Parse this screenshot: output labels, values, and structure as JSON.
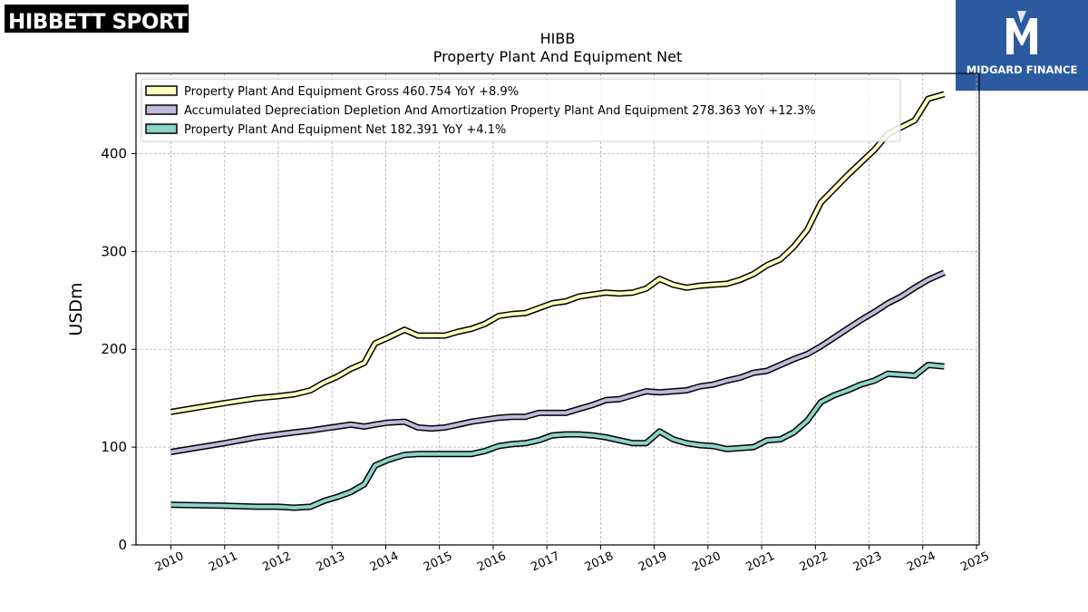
{
  "logos": {
    "left_text": "HIBBETT SPORTS",
    "left_mark": "®",
    "right_text": "MIDGARD FINANCE",
    "right_icon": "midgard-m-icon"
  },
  "chart_data": {
    "type": "line",
    "title": "HIBB",
    "subtitle": "Property Plant And Equipment Net",
    "ylabel": "USDm",
    "xlabel": "",
    "xlim": [
      2009.35,
      2025.05
    ],
    "ylim": [
      0,
      482
    ],
    "grid": true,
    "legend_position": "top-left",
    "x_ticks": [
      "2010",
      "2011",
      "2012",
      "2013",
      "2014",
      "2015",
      "2016",
      "2017",
      "2018",
      "2019",
      "2020",
      "2021",
      "2022",
      "2023",
      "2024",
      "2025"
    ],
    "y_ticks": [
      "0",
      "100",
      "200",
      "300",
      "400"
    ],
    "series": [
      {
        "name": "Property Plant And Equipment Gross",
        "legend_label": "Property Plant And Equipment Gross  460.754 YoY +8.9%",
        "color": "#ffffbf",
        "points": [
          [
            2010.0,
            136
          ],
          [
            2011.0,
            145
          ],
          [
            2011.6,
            150
          ],
          [
            2012.0,
            152
          ],
          [
            2012.3,
            154
          ],
          [
            2012.6,
            158
          ],
          [
            2012.85,
            166
          ],
          [
            2013.1,
            172
          ],
          [
            2013.35,
            180
          ],
          [
            2013.6,
            186
          ],
          [
            2013.8,
            206
          ],
          [
            2014.05,
            212
          ],
          [
            2014.35,
            220
          ],
          [
            2014.6,
            214
          ],
          [
            2014.85,
            214
          ],
          [
            2015.1,
            214
          ],
          [
            2015.35,
            218
          ],
          [
            2015.6,
            221
          ],
          [
            2015.85,
            226
          ],
          [
            2016.1,
            234
          ],
          [
            2016.35,
            236
          ],
          [
            2016.6,
            237
          ],
          [
            2016.85,
            242
          ],
          [
            2017.1,
            247
          ],
          [
            2017.35,
            249
          ],
          [
            2017.6,
            254
          ],
          [
            2017.85,
            256
          ],
          [
            2018.1,
            258
          ],
          [
            2018.35,
            257
          ],
          [
            2018.6,
            258
          ],
          [
            2018.85,
            262
          ],
          [
            2019.1,
            272
          ],
          [
            2019.35,
            266
          ],
          [
            2019.6,
            263
          ],
          [
            2019.85,
            265
          ],
          [
            2020.1,
            266
          ],
          [
            2020.35,
            267
          ],
          [
            2020.6,
            271
          ],
          [
            2020.85,
            277
          ],
          [
            2021.1,
            286
          ],
          [
            2021.35,
            292
          ],
          [
            2021.6,
            305
          ],
          [
            2021.85,
            322
          ],
          [
            2022.1,
            350
          ],
          [
            2022.35,
            364
          ],
          [
            2022.6,
            378
          ],
          [
            2022.85,
            391
          ],
          [
            2023.1,
            404
          ],
          [
            2023.35,
            420
          ],
          [
            2023.6,
            427
          ],
          [
            2023.85,
            434
          ],
          [
            2024.1,
            456
          ],
          [
            2024.4,
            460.754
          ]
        ]
      },
      {
        "name": "Accumulated Depreciation Depletion And Amortization Property Plant And Equipment",
        "legend_label": "Accumulated Depreciation Depletion And Amortization Property Plant And Equipment  278.363 YoY +12.3%",
        "color": "#bebada",
        "points": [
          [
            2010.0,
            95
          ],
          [
            2011.0,
            104
          ],
          [
            2011.6,
            110
          ],
          [
            2012.0,
            113
          ],
          [
            2012.3,
            115
          ],
          [
            2012.6,
            117
          ],
          [
            2012.85,
            119
          ],
          [
            2013.1,
            121
          ],
          [
            2013.35,
            123
          ],
          [
            2013.6,
            121
          ],
          [
            2013.8,
            123
          ],
          [
            2014.05,
            125
          ],
          [
            2014.35,
            126
          ],
          [
            2014.6,
            120
          ],
          [
            2014.85,
            119
          ],
          [
            2015.1,
            120
          ],
          [
            2015.35,
            123
          ],
          [
            2015.6,
            126
          ],
          [
            2015.85,
            128
          ],
          [
            2016.1,
            130
          ],
          [
            2016.35,
            131
          ],
          [
            2016.6,
            131
          ],
          [
            2016.85,
            135
          ],
          [
            2017.1,
            135
          ],
          [
            2017.35,
            135
          ],
          [
            2017.6,
            139
          ],
          [
            2017.85,
            143
          ],
          [
            2018.1,
            148
          ],
          [
            2018.35,
            149
          ],
          [
            2018.6,
            153
          ],
          [
            2018.85,
            157
          ],
          [
            2019.1,
            156
          ],
          [
            2019.35,
            157
          ],
          [
            2019.6,
            158
          ],
          [
            2019.85,
            162
          ],
          [
            2020.1,
            164
          ],
          [
            2020.35,
            168
          ],
          [
            2020.6,
            171
          ],
          [
            2020.85,
            176
          ],
          [
            2021.1,
            178
          ],
          [
            2021.35,
            184
          ],
          [
            2021.6,
            190
          ],
          [
            2021.85,
            195
          ],
          [
            2022.1,
            203
          ],
          [
            2022.35,
            212
          ],
          [
            2022.6,
            221
          ],
          [
            2022.85,
            230
          ],
          [
            2023.1,
            238
          ],
          [
            2023.35,
            247
          ],
          [
            2023.6,
            254
          ],
          [
            2023.85,
            263
          ],
          [
            2024.1,
            271
          ],
          [
            2024.4,
            278.363
          ]
        ]
      },
      {
        "name": "Property Plant And Equipment Net",
        "legend_label": "Property Plant And Equipment Net  182.391 YoY +4.1%",
        "color": "#8dd3c7",
        "points": [
          [
            2010.0,
            41
          ],
          [
            2011.0,
            40
          ],
          [
            2011.6,
            39
          ],
          [
            2012.0,
            39
          ],
          [
            2012.3,
            38
          ],
          [
            2012.6,
            39
          ],
          [
            2012.85,
            45
          ],
          [
            2013.1,
            49
          ],
          [
            2013.35,
            54
          ],
          [
            2013.6,
            62
          ],
          [
            2013.8,
            81
          ],
          [
            2014.05,
            87
          ],
          [
            2014.35,
            92
          ],
          [
            2014.6,
            93
          ],
          [
            2014.85,
            93
          ],
          [
            2015.1,
            93
          ],
          [
            2015.35,
            93
          ],
          [
            2015.6,
            93
          ],
          [
            2015.85,
            96
          ],
          [
            2016.1,
            101
          ],
          [
            2016.35,
            103
          ],
          [
            2016.6,
            104
          ],
          [
            2016.85,
            107
          ],
          [
            2017.1,
            112
          ],
          [
            2017.35,
            113
          ],
          [
            2017.6,
            113
          ],
          [
            2017.85,
            112
          ],
          [
            2018.1,
            110
          ],
          [
            2018.35,
            107
          ],
          [
            2018.6,
            104
          ],
          [
            2018.85,
            104
          ],
          [
            2019.1,
            116
          ],
          [
            2019.35,
            108
          ],
          [
            2019.6,
            104
          ],
          [
            2019.85,
            102
          ],
          [
            2020.1,
            101
          ],
          [
            2020.35,
            98
          ],
          [
            2020.6,
            99
          ],
          [
            2020.85,
            100
          ],
          [
            2021.1,
            107
          ],
          [
            2021.35,
            108
          ],
          [
            2021.6,
            115
          ],
          [
            2021.85,
            127
          ],
          [
            2022.1,
            146
          ],
          [
            2022.35,
            153
          ],
          [
            2022.6,
            158
          ],
          [
            2022.85,
            164
          ],
          [
            2023.1,
            168
          ],
          [
            2023.35,
            175
          ],
          [
            2023.6,
            174
          ],
          [
            2023.85,
            173
          ],
          [
            2024.1,
            184
          ],
          [
            2024.4,
            182.391
          ]
        ]
      }
    ]
  }
}
